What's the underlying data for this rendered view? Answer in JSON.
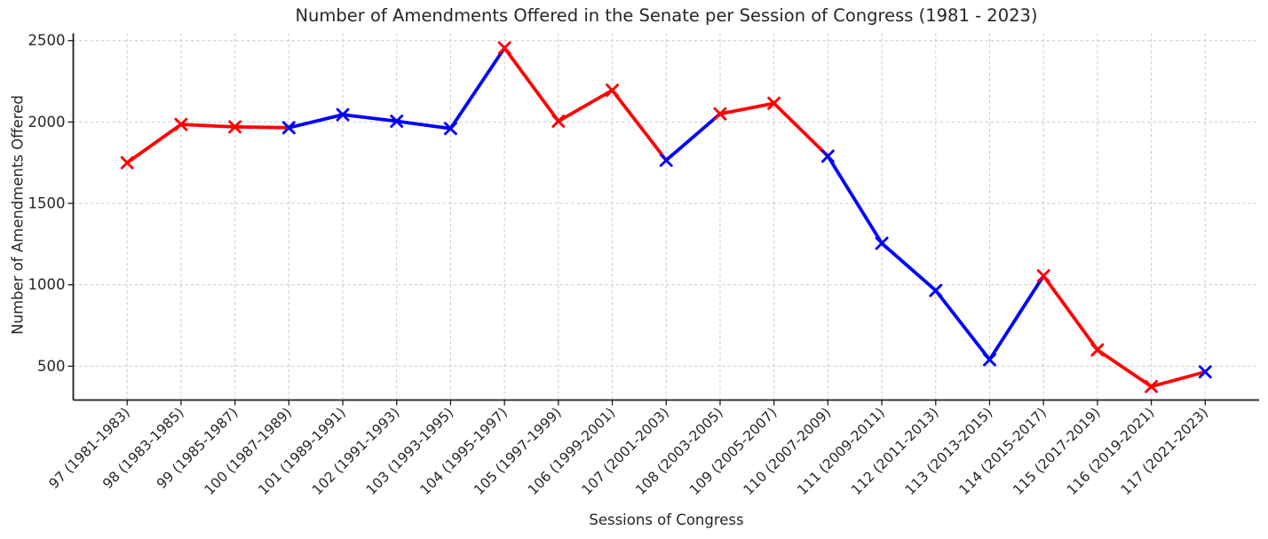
{
  "chart_data": {
    "type": "line",
    "title": "Number of Amendments Offered in the Senate per Session of Congress (1981 - 2023)",
    "xlabel": "Sessions of Congress",
    "ylabel": "Number of Amendments Offered",
    "categories": [
      "97 (1981-1983)",
      "98 (1983-1985)",
      "99 (1985-1987)",
      "100 (1987-1989)",
      "101 (1989-1991)",
      "102 (1991-1993)",
      "103 (1993-1995)",
      "104 (1995-1997)",
      "105 (1997-1999)",
      "106 (1999-2001)",
      "107 (2001-2003)",
      "108 (2003-2005)",
      "109 (2005-2007)",
      "110 (2007-2009)",
      "111 (2009-2011)",
      "112 (2011-2013)",
      "113 (2013-2015)",
      "114 (2015-2017)",
      "115 (2017-2019)",
      "116 (2019-2021)",
      "117 (2021-2023)"
    ],
    "values": [
      1750,
      1985,
      1970,
      1965,
      2045,
      2005,
      1960,
      2455,
      2005,
      2195,
      1765,
      2050,
      2115,
      1790,
      1255,
      965,
      540,
      1055,
      600,
      375,
      465
    ],
    "point_parties": [
      "R",
      "R",
      "R",
      "D",
      "D",
      "D",
      "D",
      "R",
      "R",
      "R",
      "D",
      "R",
      "R",
      "D",
      "D",
      "D",
      "D",
      "R",
      "R",
      "R",
      "D"
    ],
    "party_colors": {
      "R": "#ff0000",
      "D": "#0000ff"
    },
    "segment_color_rule": "each segment takes the color of its starting session's marker",
    "marker": "x",
    "yticks": [
      500,
      1000,
      1500,
      2000,
      2500
    ],
    "ylim": [
      292,
      2545
    ],
    "grid": true,
    "grid_style": "dashed",
    "legend_position": "none",
    "x_tick_rotation_deg": 45
  }
}
